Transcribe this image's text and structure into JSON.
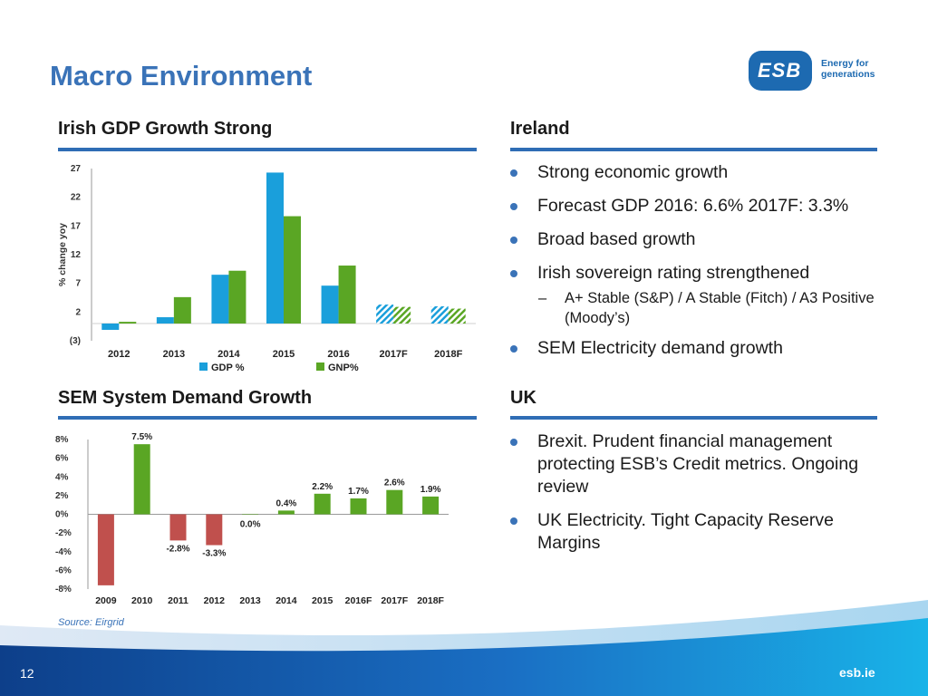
{
  "page": {
    "title": "Macro Environment",
    "logo_text": "ESB",
    "tagline": "Energy for generations",
    "source": "Source: Eirgrid",
    "page_number": "12",
    "site": "esb.ie"
  },
  "sections": {
    "gdp": "Irish GDP Growth Strong",
    "ireland": "Ireland",
    "sem": "SEM System Demand Growth",
    "uk": "UK"
  },
  "ireland_bullets": [
    "Strong economic growth",
    "Forecast GDP 2016: 6.6% 2017F: 3.3%",
    "Broad based growth",
    "Irish sovereign rating strengthened",
    "A+ Stable (S&P) / A Stable (Fitch) / A3 Positive (Moody’s)",
    "SEM Electricity demand growth"
  ],
  "uk_bullets": [
    "Brexit. Prudent financial management protecting ESB’s Credit metrics. Ongoing review",
    "UK Electricity. Tight Capacity Reserve Margins"
  ],
  "colors": {
    "gdp": "#1a9fdb",
    "gnp": "#5aa624",
    "neg": "#c0504d",
    "pos": "#5aa624",
    "accent": "#3a73b8"
  },
  "chart_data": [
    {
      "type": "bar",
      "title": "Irish GDP Growth Strong",
      "ylabel": "% change yoy",
      "ylim": [
        -3,
        27
      ],
      "yticks": [
        27,
        22,
        17,
        12,
        7,
        2,
        -3
      ],
      "ytick_labels": [
        "27",
        "22",
        "17",
        "12",
        "7",
        "2",
        "(3)"
      ],
      "categories": [
        "2012",
        "2013",
        "2014",
        "2015",
        "2016",
        "2017F",
        "2018F"
      ],
      "forecast_from_index": 5,
      "series": [
        {
          "name": "GDP %",
          "values": [
            -1.1,
            1.1,
            8.5,
            26.3,
            6.6,
            3.3,
            3.0
          ]
        },
        {
          "name": "GNP%",
          "values": [
            0.3,
            4.6,
            9.2,
            18.7,
            10.1,
            2.9,
            2.6
          ]
        }
      ]
    },
    {
      "type": "bar",
      "title": "SEM System Demand Growth",
      "ylim": [
        -8,
        8
      ],
      "yticks": [
        8,
        6,
        4,
        2,
        0,
        -2,
        -4,
        -6,
        -8
      ],
      "ytick_labels": [
        "8%",
        "6%",
        "4%",
        "2%",
        "0%",
        "-2%",
        "-4%",
        "-6%",
        "-8%"
      ],
      "categories": [
        "2009",
        "2010",
        "2011",
        "2012",
        "2013",
        "2014",
        "2015",
        "2016F",
        "2017F",
        "2018F"
      ],
      "values": [
        -7.6,
        7.5,
        -2.8,
        -3.3,
        0.0,
        0.4,
        2.2,
        1.7,
        2.6,
        1.9
      ],
      "data_labels": [
        "",
        "7.5%",
        "-2.8%",
        "-3.3%",
        "0.0%",
        "0.4%",
        "2.2%",
        "1.7%",
        "2.6%",
        "1.9%"
      ]
    }
  ]
}
